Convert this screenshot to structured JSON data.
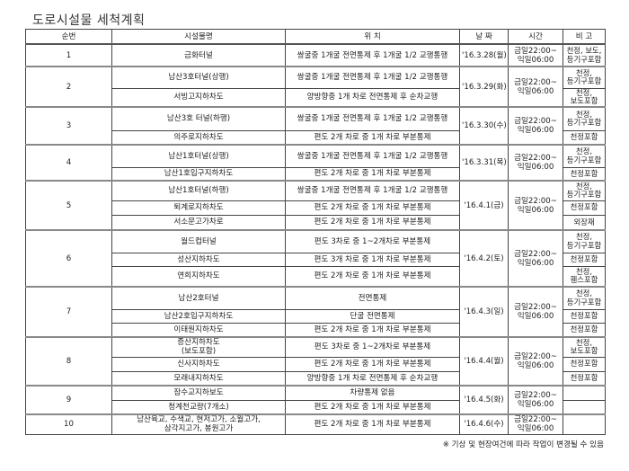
{
  "title": "도로시설물 세척계획",
  "headers": [
    "순번",
    "시설물명",
    "위 치",
    "날 짜",
    "시간",
    "비 고"
  ],
  "groups": [
    {
      "no": "1",
      "date": "'16.3.28(월)",
      "time": "금일22:00~\n익일06:00",
      "rows": [
        {
          "facility": "금화터널",
          "location": "쌍굴중 1개굴 전면통제 후 1개굴 1/2 교행통행",
          "note": "천정, 보도,\n등기구포함"
        }
      ]
    },
    {
      "no": "2",
      "date": "'16.3.29(화)",
      "time": "금일22:00~\n익일06:00",
      "rows": [
        {
          "facility": "남산3호터널(상행)",
          "location": "쌍굴중 1개굴 전면통제 후 1개굴 1/2 교행통행",
          "note": "천정,\n등기구포함"
        },
        {
          "facility": "서빙고지하차도",
          "location": "양방향중 1개 차로 전면통제 후 순차교행",
          "note": "천정,\n보도포함"
        }
      ]
    },
    {
      "no": "3",
      "date": "'16.3.30(수)",
      "time": "금일22:00~\n익일06:00",
      "rows": [
        {
          "facility": "남산3호 터널(하행)",
          "location": "쌍굴중 1개굴 전면통제 후 1개굴 1/2 교행통행",
          "note": "천정,\n등기구포함"
        },
        {
          "facility": "의주로지하차도",
          "location": "편도 2개 차로 중 1개 차로 부분통제",
          "note": "천정포함"
        }
      ]
    },
    {
      "no": "4",
      "date": "'16.3.31(목)",
      "time": "금일22:00~\n익일06:00",
      "rows": [
        {
          "facility": "남산1호터널(상행)",
          "location": "쌍굴중 1개굴 전면통제 후 1개굴 1/2 교행통행",
          "note": "천정,\n등기구포함"
        },
        {
          "facility": "남산1호입구지하차도",
          "location": "편도 2개 차로 중 1개 차로 부분통제",
          "note": "천정포함"
        }
      ]
    },
    {
      "no": "5",
      "date": "'16.4.1(금)",
      "time": "금일22:00~\n익일06:00",
      "rows": [
        {
          "facility": "남산1호터널(하행)",
          "location": "쌍굴중 1개굴 전면통제 후 1개굴 1/2 교행통행",
          "note": "천정,\n등기구포함"
        },
        {
          "facility": "퇴계로지하차도",
          "location": "편도 2개 차로 중 1개 차로 부분통제",
          "note": "천정포함"
        },
        {
          "facility": "서소문고가차로",
          "location": "편도 2개 차로 중 1개 차로 부분통제",
          "note": "외장재"
        }
      ]
    },
    {
      "no": "6",
      "date": "'16.4.2(토)",
      "time": "금일22:00~\n익일06:00",
      "rows": [
        {
          "facility": "월드컵터널",
          "location": "편도 3차로 중 1~2개차로 부분통제",
          "note": "천정,\n등기구포함"
        },
        {
          "facility": "성산지하차도",
          "location": "편도 3개 차로 중 1개 차로 부분통제",
          "note": "천정포함"
        },
        {
          "facility": "연희지하차도",
          "location": "편도 2개 차로 중 1개 차로 부분통제",
          "note": "천정,\n휀스포함"
        }
      ]
    },
    {
      "no": "7",
      "date": "'16.4.3(일)",
      "time": "금일22:00~\n익일06:00",
      "rows": [
        {
          "facility": "남산2호터널",
          "location": "전면통제",
          "note": "천정,\n등기구포함"
        },
        {
          "facility": "남산2호입구지하차도",
          "location": "단굴 전면통제",
          "note": "천정포함"
        },
        {
          "facility": "이태원지하차도",
          "location": "편도 2개 차로 중 1개 차로 부분통제",
          "note": "천정포함"
        }
      ]
    },
    {
      "no": "8",
      "date": "'16.4.4(월)",
      "time": "금일22:00~\n익일06:00",
      "rows": [
        {
          "facility": "증산지하차도\n(보도포함)",
          "location": "편도 3차로 중 1~2개차로 부분통제",
          "note": "천정,\n보도포함"
        },
        {
          "facility": "신사지하차도",
          "location": "편도 2개 차로 중 1개 차로 부분통제",
          "note": "천정포함"
        },
        {
          "facility": "모래내지하차도",
          "location": "양방향중 1개 차로 전면통제 후 순차교행",
          "note": "천정포함"
        }
      ]
    },
    {
      "no": "9",
      "date": "'16.4.5(화)",
      "time": "금일22:00~\n익일06:00",
      "rows": [
        {
          "facility": "잠수교지하보도",
          "location": "차량통제 없음",
          "note": ""
        },
        {
          "facility": "청계천교량(7개소)",
          "location": "편도 2개 차로 중 1개 차로 부분통제",
          "note": ""
        }
      ]
    },
    {
      "no": "10",
      "date": "'16.4.6(수)",
      "time": "금일22:00~\n익일06:00",
      "rows": [
        {
          "facility": "남산육교, 수색교, 현저고가, 소월고가,\n삼각지고가, 봉원고가",
          "location": "편도 2개 차로 중 1개 차로 부분통제",
          "note": ""
        }
      ]
    }
  ],
  "footnote": "※ 기상 및 현장여건에 따라 작업이 변경될 수 있음"
}
